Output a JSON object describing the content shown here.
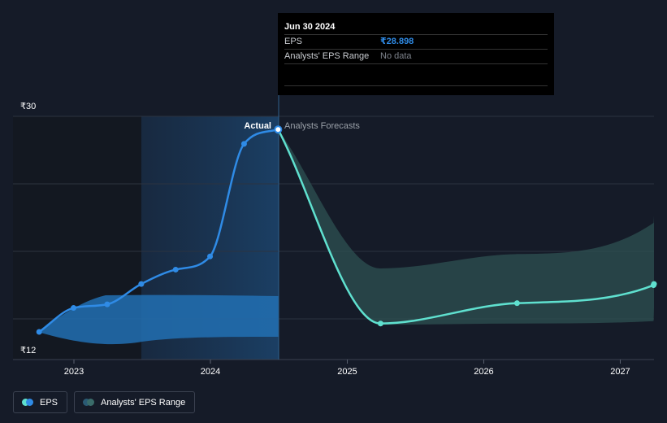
{
  "chart_data": {
    "type": "line",
    "y_axis": {
      "min_label": "₹12",
      "max_label": "₹30",
      "ylim": [
        12,
        30
      ]
    },
    "x_axis": {
      "ticks": [
        "2023",
        "2024",
        "2025",
        "2026",
        "2027"
      ]
    },
    "region_labels": {
      "actual": "Actual",
      "forecast": "Analysts Forecasts"
    },
    "series": [
      {
        "name": "EPS",
        "kind": "actual",
        "color": "#2f8be6",
        "points": [
          {
            "x": "2022-09-30",
            "y": 12.0
          },
          {
            "x": "2022-12-31",
            "y": 14.0
          },
          {
            "x": "2023-03-31",
            "y": 14.3
          },
          {
            "x": "2023-06-30",
            "y": 16.0
          },
          {
            "x": "2023-09-30",
            "y": 17.2
          },
          {
            "x": "2023-12-31",
            "y": 18.3
          },
          {
            "x": "2024-03-31",
            "y": 27.7
          },
          {
            "x": "2024-06-30",
            "y": 28.9
          }
        ]
      },
      {
        "name": "EPS",
        "kind": "forecast",
        "color": "#5fe0cf",
        "points": [
          {
            "x": "2024-06-30",
            "y": 28.9
          },
          {
            "x": "2025-03-31",
            "y": 12.7
          },
          {
            "x": "2026-03-31",
            "y": 14.4
          },
          {
            "x": "2027-03-31",
            "y": 15.9
          }
        ]
      }
    ],
    "analyst_range": {
      "name": "Analysts' EPS Range",
      "forecast": [
        {
          "x": "2024-06-30",
          "low": 28.9,
          "high": 28.9
        },
        {
          "x": "2025-03-31",
          "low": 12.6,
          "high": 17.3
        },
        {
          "x": "2026-03-31",
          "low": 12.7,
          "high": 18.5
        },
        {
          "x": "2027-03-31",
          "low": 12.9,
          "high": 21.1
        }
      ]
    }
  },
  "tooltip": {
    "date": "Jun 30 2024",
    "rows": [
      {
        "key": "EPS",
        "value": "₹28.898"
      },
      {
        "key": "Analysts' EPS Range",
        "value": "No data"
      }
    ]
  },
  "legend": {
    "items": [
      {
        "label": "EPS",
        "colors": [
          "#5fe0cf",
          "#2f8be6"
        ]
      },
      {
        "label": "Analysts' EPS Range",
        "colors": [
          "#2a5a74",
          "#3a6c6a"
        ]
      }
    ]
  },
  "colors": {
    "background": "#151b28",
    "actual_line": "#2f8be6",
    "forecast_line": "#5fe0cf",
    "actual_band": "#2270b3",
    "forecast_band": "#2e5252",
    "grid": "#2c3340"
  }
}
